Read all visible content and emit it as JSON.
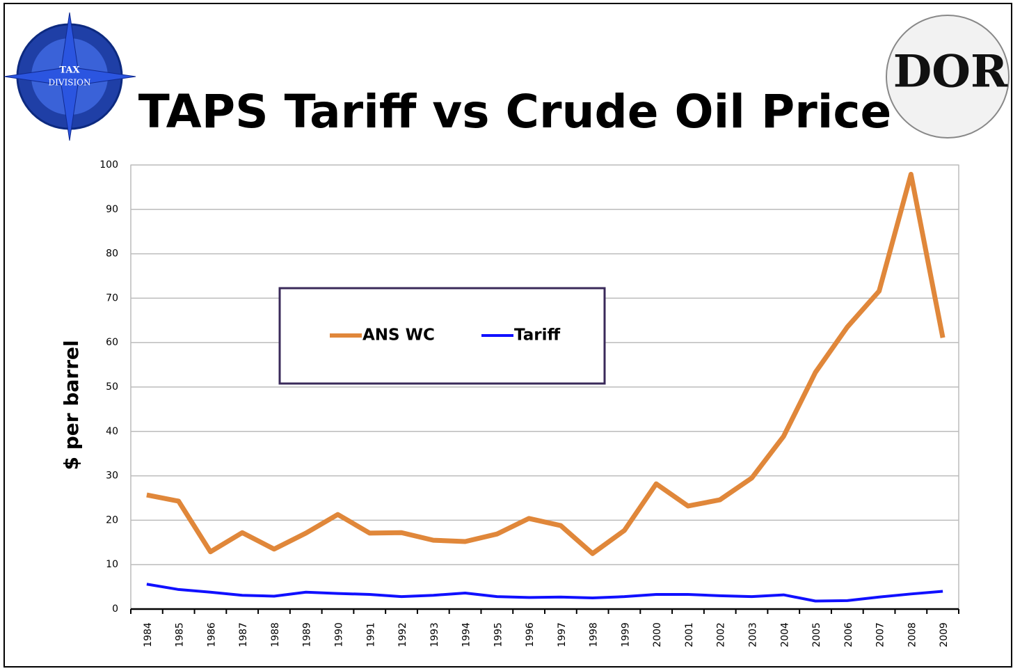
{
  "chart_data": {
    "type": "line",
    "title": "TAPS Tariff vs Crude Oil Price",
    "y_label": "$ per barrel",
    "logo_texts": [
      "TAX",
      "DIVISION",
      "DOR"
    ],
    "categories": [
      "1984",
      "1985",
      "1986",
      "1987",
      "1988",
      "1989",
      "1990",
      "1991",
      "1992",
      "1993",
      "1994",
      "1995",
      "1996",
      "1997",
      "1998",
      "1999",
      "2000",
      "2001",
      "2002",
      "2003",
      "2004",
      "2005",
      "2006",
      "2007",
      "2008",
      "2009"
    ],
    "series": [
      {
        "name": "ANS WC",
        "color": "#e0873a",
        "values": [
          25.7,
          24.3,
          12.9,
          17.2,
          13.5,
          17.1,
          21.3,
          17.1,
          17.2,
          15.5,
          15.2,
          16.9,
          20.4,
          18.8,
          12.5,
          17.7,
          28.2,
          23.2,
          24.6,
          29.5,
          38.9,
          53.3,
          63.5,
          71.6,
          97.9,
          61.1
        ]
      },
      {
        "name": "Tariff",
        "color": "#1010ff",
        "values": [
          5.6,
          4.4,
          3.8,
          3.1,
          2.9,
          3.8,
          3.5,
          3.3,
          2.8,
          3.1,
          3.6,
          2.8,
          2.6,
          2.7,
          2.5,
          2.8,
          3.3,
          3.3,
          3.0,
          2.8,
          3.2,
          1.8,
          1.9,
          2.7,
          3.4,
          4.0
        ]
      }
    ],
    "ylim": [
      0,
      100
    ],
    "yticks": [
      0,
      10,
      20,
      30,
      40,
      50,
      60,
      70,
      80,
      90,
      100
    ],
    "grid": true
  }
}
